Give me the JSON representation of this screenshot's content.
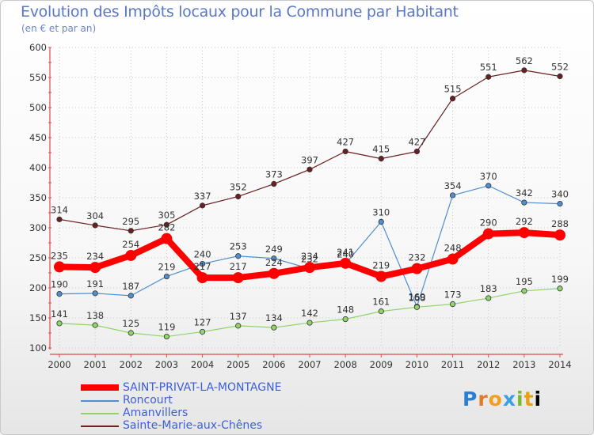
{
  "chart_data": {
    "type": "line",
    "title": "Evolution des Impôts locaux pour la Commune par Habitant",
    "subtitle": "(en € et par an)",
    "xlabel": "",
    "ylabel": "",
    "x": [
      "2000",
      "2001",
      "2002",
      "2003",
      "2004",
      "2005",
      "2006",
      "2007",
      "2008",
      "2009",
      "2010",
      "2011",
      "2012",
      "2013",
      "2014"
    ],
    "ylim": [
      100,
      600
    ],
    "yticks": [
      100,
      150,
      200,
      250,
      300,
      350,
      400,
      450,
      500,
      550,
      600
    ],
    "series": [
      {
        "name": "Sainte-Marie-aux-Chênes",
        "color": "#6b1f22",
        "width": 1.2,
        "values": [
          314,
          304,
          295,
          305,
          337,
          352,
          373,
          397,
          427,
          415,
          427,
          515,
          551,
          562,
          552
        ]
      },
      {
        "name": "Roncourt",
        "color": "#4f8fd0",
        "width": 1.2,
        "values": [
          190,
          191,
          187,
          219,
          240,
          253,
          249,
          232,
          240,
          310,
          169,
          354,
          370,
          342,
          340
        ]
      },
      {
        "name": "Amanvillers",
        "color": "#90d46a",
        "width": 1.2,
        "values": [
          141,
          138,
          125,
          119,
          127,
          137,
          134,
          142,
          148,
          161,
          168,
          173,
          183,
          195,
          199
        ]
      },
      {
        "name": "SAINT-PRIVAT-LA-MONTAGNE",
        "color": "#ff0000",
        "width": 8,
        "values": [
          235,
          234,
          254,
          282,
          217,
          217,
          224,
          234,
          241,
          219,
          232,
          248,
          290,
          292,
          288
        ]
      }
    ],
    "legend_order": [
      "SAINT-PRIVAT-LA-MONTAGNE",
      "Roncourt",
      "Amanvillers",
      "Sainte-Marie-aux-Chênes"
    ],
    "legend_position": "bottom-left"
  },
  "logo": [
    "P",
    "r",
    "o",
    "x",
    "i",
    "t",
    "i"
  ]
}
